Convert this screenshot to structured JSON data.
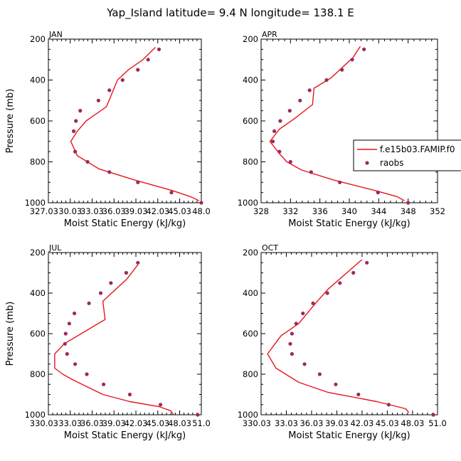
{
  "figure_title": "Yap_Island  latitude= 9.4 N longitude= 138.1 E",
  "colors": {
    "model": "#e8141e",
    "obs": "#9c2a5c"
  },
  "legend": {
    "model_label": "f.e15b03.FAMIP.f0",
    "obs_label": "raobs"
  },
  "chart_data": [
    {
      "type": "line",
      "panel_label": "JAN",
      "xlabel": "Moist Static Energy (kJ/kg)",
      "ylabel": "Pressure (mb)",
      "xlim": [
        327.03,
        348.0
      ],
      "ylim": [
        1000,
        200
      ],
      "y_inverted": true,
      "xticks": [
        327.03,
        330.03,
        333.03,
        336.03,
        339.03,
        342.03,
        345.03,
        348.0
      ],
      "xtick_labels": [
        "327.03",
        "30.03",
        "33.03",
        "36.03",
        "39.03",
        "42.03",
        "45.03",
        "48.0"
      ],
      "yticks": [
        200,
        400,
        600,
        800,
        1000
      ],
      "series": [
        {
          "name": "f.e15b03.FAMIP.f0",
          "style": "line",
          "points": [
            [
              347.7,
              990
            ],
            [
              346.5,
              970
            ],
            [
              344.0,
              940
            ],
            [
              339.0,
              890
            ],
            [
              334.0,
              835
            ],
            [
              331.0,
              770
            ],
            [
              330.1,
              700
            ],
            [
              331.0,
              650
            ],
            [
              332.2,
              600
            ],
            [
              335.0,
              530
            ],
            [
              336.5,
              400
            ],
            [
              338.0,
              350
            ],
            [
              340.0,
              300
            ],
            [
              341.7,
              240
            ]
          ]
        },
        {
          "name": "raobs",
          "style": "markers",
          "points": [
            [
              348.0,
              1000
            ],
            [
              343.9,
              950
            ],
            [
              339.3,
              900
            ],
            [
              335.4,
              850
            ],
            [
              332.4,
              800
            ],
            [
              330.7,
              750
            ],
            [
              330.5,
              650
            ],
            [
              330.8,
              600
            ],
            [
              331.4,
              550
            ],
            [
              333.9,
              500
            ],
            [
              335.4,
              450
            ],
            [
              337.2,
              400
            ],
            [
              339.3,
              350
            ],
            [
              340.7,
              300
            ],
            [
              342.2,
              250
            ]
          ]
        }
      ]
    },
    {
      "type": "line",
      "panel_label": "APR",
      "xlabel": "Moist Static Energy (kJ/kg)",
      "ylabel": "",
      "xlim": [
        328,
        352
      ],
      "ylim": [
        1000,
        200
      ],
      "y_inverted": true,
      "xticks": [
        328,
        332,
        336,
        340,
        344,
        348,
        352
      ],
      "xtick_labels": [
        "328",
        "332",
        "336",
        "340",
        "344",
        "348",
        "352"
      ],
      "yticks": [
        200,
        400,
        600,
        800,
        1000
      ],
      "series": [
        {
          "name": "f.e15b03.FAMIP.f0",
          "style": "line",
          "points": [
            [
              347.5,
              990
            ],
            [
              346.5,
              970
            ],
            [
              343.5,
              940
            ],
            [
              338.0,
              890
            ],
            [
              333.5,
              840
            ],
            [
              331.5,
              800
            ],
            [
              330.5,
              760
            ],
            [
              329.2,
              700
            ],
            [
              330.5,
              640
            ],
            [
              332.5,
              590
            ],
            [
              335.0,
              520
            ],
            [
              335.2,
              440
            ],
            [
              337.5,
              390
            ],
            [
              339.0,
              340
            ],
            [
              340.5,
              290
            ],
            [
              341.5,
              235
            ]
          ]
        },
        {
          "name": "raobs",
          "style": "markers",
          "points": [
            [
              348.0,
              1000
            ],
            [
              343.9,
              950
            ],
            [
              338.7,
              900
            ],
            [
              334.8,
              850
            ],
            [
              332.0,
              800
            ],
            [
              330.5,
              750
            ],
            [
              329.6,
              700
            ],
            [
              329.8,
              650
            ],
            [
              330.6,
              600
            ],
            [
              331.9,
              550
            ],
            [
              333.3,
              500
            ],
            [
              334.6,
              450
            ],
            [
              336.9,
              400
            ],
            [
              339.0,
              350
            ],
            [
              340.4,
              300
            ],
            [
              342.0,
              250
            ]
          ]
        }
      ]
    },
    {
      "type": "line",
      "panel_label": "JUL",
      "xlabel": "Moist Static Energy (kJ/kg)",
      "ylabel": "Pressure (mb)",
      "xlim": [
        330.03,
        351.0
      ],
      "ylim": [
        1000,
        200
      ],
      "y_inverted": true,
      "xticks": [
        330.03,
        333.03,
        336.03,
        339.03,
        342.03,
        345.03,
        348.03,
        351.0
      ],
      "xtick_labels": [
        "330.03",
        "33.03",
        "36.03",
        "39.03",
        "42.03",
        "45.03",
        "48.03",
        "51.0"
      ],
      "yticks": [
        200,
        400,
        600,
        800,
        1000
      ],
      "series": [
        {
          "name": "f.e15b03.FAMIP.f0",
          "style": "line",
          "points": [
            [
              347.2,
              1000
            ],
            [
              346.8,
              980
            ],
            [
              345.2,
              960
            ],
            [
              341.2,
              935
            ],
            [
              337.5,
              900
            ],
            [
              335.5,
              865
            ],
            [
              333.5,
              830
            ],
            [
              332.0,
              800
            ],
            [
              330.9,
              770
            ],
            [
              330.9,
              700
            ],
            [
              332.2,
              650
            ],
            [
              335.0,
              590
            ],
            [
              337.8,
              530
            ],
            [
              337.5,
              440
            ],
            [
              339.3,
              380
            ],
            [
              340.8,
              330
            ],
            [
              342.3,
              260
            ]
          ]
        },
        {
          "name": "raobs",
          "style": "markers",
          "points": [
            [
              350.5,
              1000
            ],
            [
              345.4,
              950
            ],
            [
              341.2,
              900
            ],
            [
              337.6,
              850
            ],
            [
              335.3,
              800
            ],
            [
              333.7,
              750
            ],
            [
              332.6,
              700
            ],
            [
              332.3,
              650
            ],
            [
              332.4,
              600
            ],
            [
              332.9,
              550
            ],
            [
              333.6,
              500
            ],
            [
              335.6,
              450
            ],
            [
              337.2,
              400
            ],
            [
              338.6,
              350
            ],
            [
              340.7,
              300
            ],
            [
              342.3,
              250
            ]
          ]
        }
      ]
    },
    {
      "type": "line",
      "panel_label": "OCT",
      "xlabel": "Moist Static Energy (kJ/kg)",
      "ylabel": "",
      "xlim": [
        330.03,
        351.0
      ],
      "ylim": [
        1000,
        200
      ],
      "y_inverted": true,
      "xticks": [
        330.03,
        333.03,
        336.03,
        339.03,
        342.03,
        345.03,
        348.03,
        351.0
      ],
      "xtick_labels": [
        "330.03",
        "33.03",
        "36.03",
        "39.03",
        "42.03",
        "45.03",
        "48.03",
        "51.0"
      ],
      "yticks": [
        200,
        400,
        600,
        800,
        1000
      ],
      "series": [
        {
          "name": "f.e15b03.FAMIP.f0",
          "style": "line",
          "points": [
            [
              347.6,
              990
            ],
            [
              347.2,
              970
            ],
            [
              343.8,
              935
            ],
            [
              338.0,
              890
            ],
            [
              334.5,
              840
            ],
            [
              331.8,
              770
            ],
            [
              330.8,
              700
            ],
            [
              332.4,
              610
            ],
            [
              334.5,
              550
            ],
            [
              336.5,
              450
            ],
            [
              338.0,
              380
            ],
            [
              342.0,
              235
            ]
          ]
        },
        {
          "name": "raobs",
          "style": "markers",
          "points": [
            [
              350.5,
              1000
            ],
            [
              345.2,
              950
            ],
            [
              341.6,
              900
            ],
            [
              338.9,
              850
            ],
            [
              337.0,
              800
            ],
            [
              335.2,
              750
            ],
            [
              333.7,
              700
            ],
            [
              333.5,
              650
            ],
            [
              333.7,
              600
            ],
            [
              334.2,
              550
            ],
            [
              335.0,
              500
            ],
            [
              336.2,
              450
            ],
            [
              337.9,
              400
            ],
            [
              339.4,
              350
            ],
            [
              341.0,
              300
            ],
            [
              342.6,
              250
            ]
          ]
        }
      ]
    }
  ]
}
